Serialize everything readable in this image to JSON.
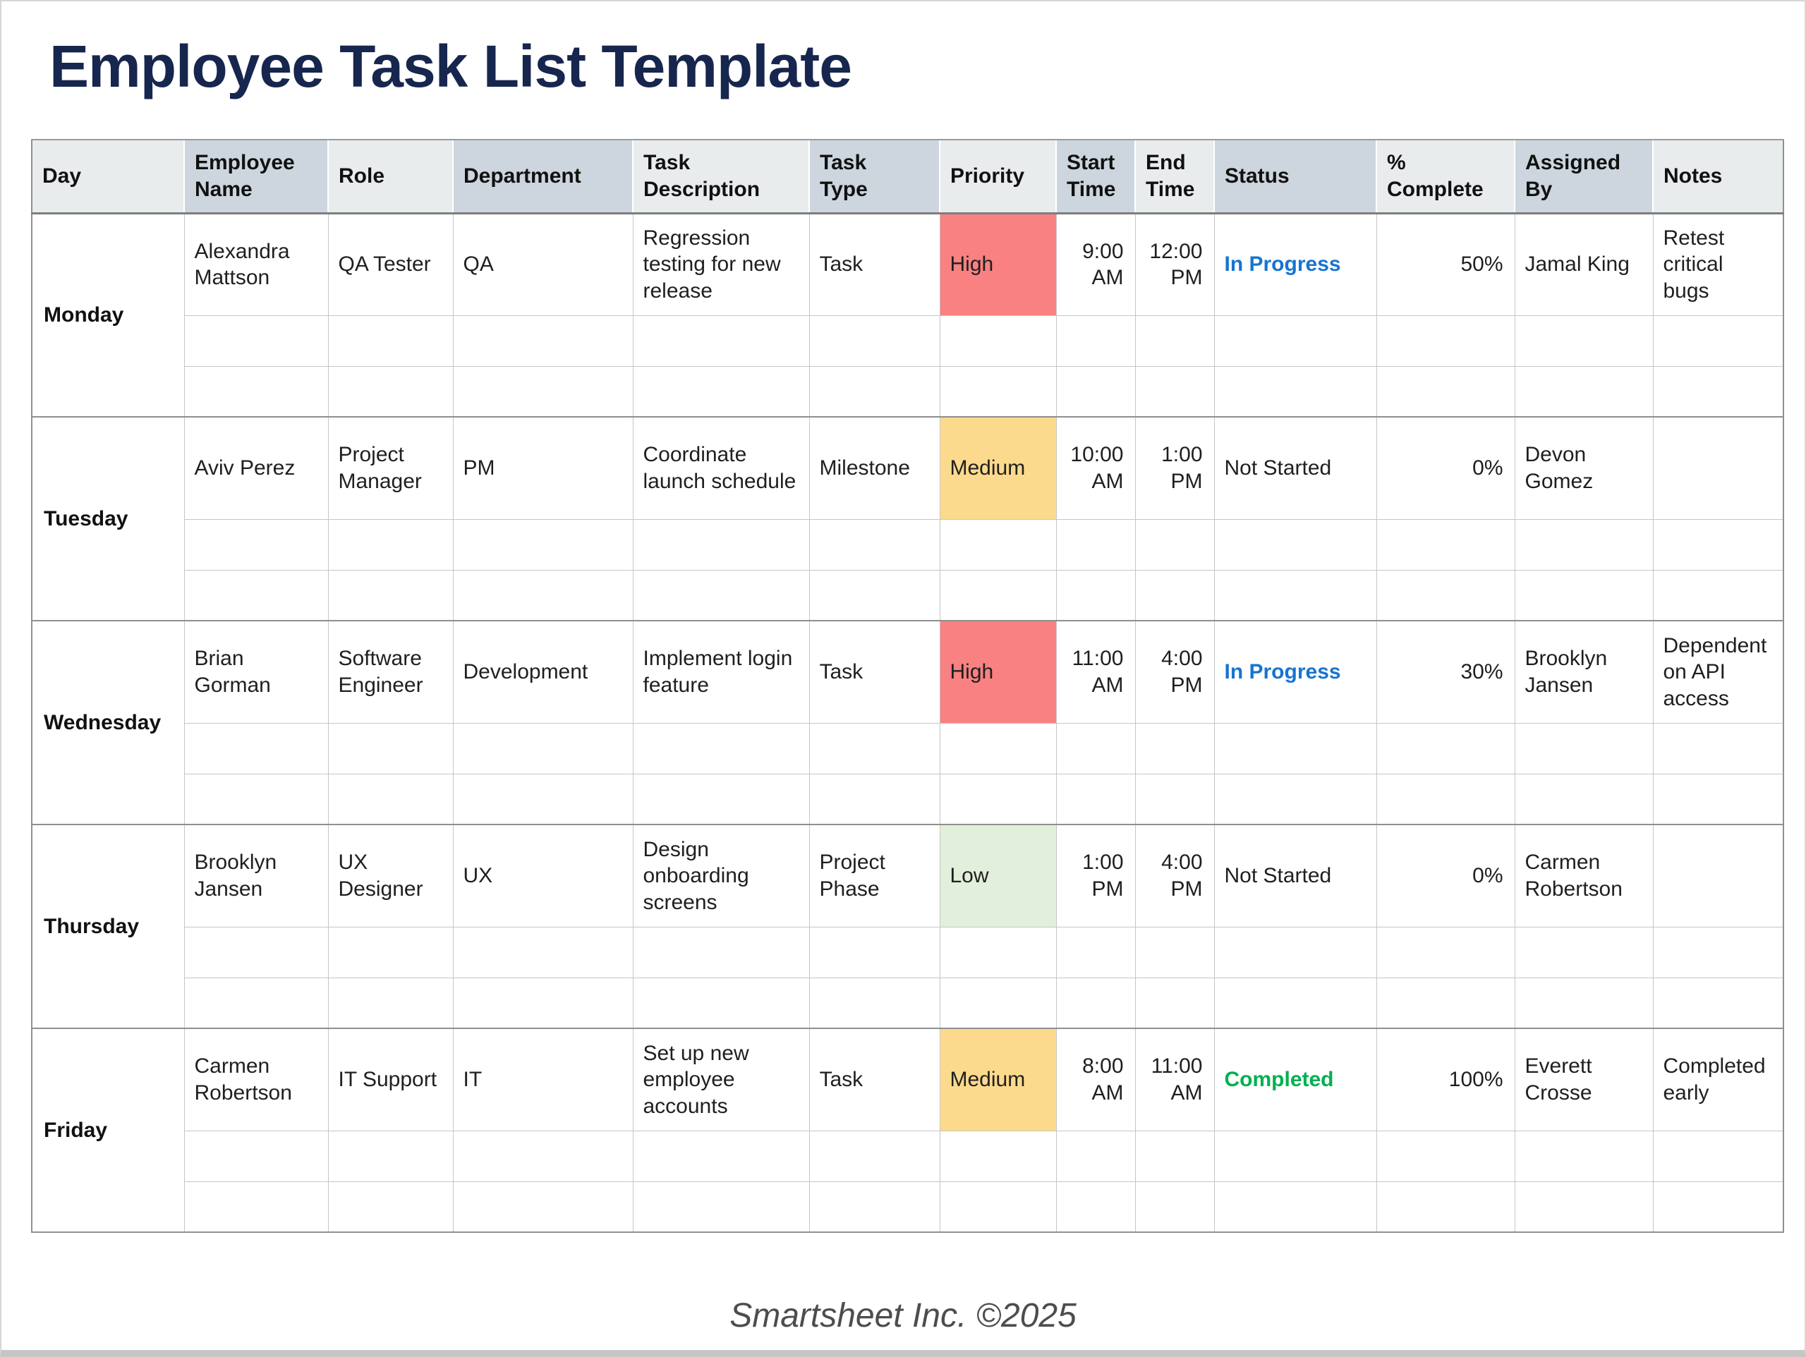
{
  "page": {
    "title": "Employee Task List Template",
    "footer": "Smartsheet Inc. ©2025"
  },
  "colors": {
    "title_navy": "#17264e",
    "header_light": "#e9eced",
    "header_dark": "#cdd6de",
    "grid_line": "#c6c6c6",
    "group_separator": "#8f8f8f"
  },
  "table": {
    "columns": [
      {
        "key": "day",
        "label": "Day"
      },
      {
        "key": "employee_name",
        "label": "Employee\nName"
      },
      {
        "key": "role",
        "label": "Role"
      },
      {
        "key": "department",
        "label": "Department"
      },
      {
        "key": "task_description",
        "label": "Task\nDescription"
      },
      {
        "key": "task_type",
        "label": "Task\nType"
      },
      {
        "key": "priority",
        "label": "Priority"
      },
      {
        "key": "start_time",
        "label": "Start\nTime"
      },
      {
        "key": "end_time",
        "label": "End\nTime"
      },
      {
        "key": "status",
        "label": "Status"
      },
      {
        "key": "pct_complete",
        "label": "%\nComplete"
      },
      {
        "key": "assigned_by",
        "label": "Assigned\nBy"
      },
      {
        "key": "notes",
        "label": "Notes"
      }
    ],
    "empty_rows_per_group": 2,
    "groups": [
      {
        "day": "Monday",
        "entry": {
          "employee_name": "Alexandra Mattson",
          "role": "QA Tester",
          "department": "QA",
          "task_description": "Regression testing for new release",
          "task_type": "Task",
          "priority": "High",
          "start_time": "9:00 AM",
          "end_time": "12:00 PM",
          "status": "In Progress",
          "pct_complete": "50%",
          "assigned_by": "Jamal King",
          "notes": "Retest critical bugs"
        }
      },
      {
        "day": "Tuesday",
        "entry": {
          "employee_name": "Aviv Perez",
          "role": "Project Manager",
          "department": "PM",
          "task_description": "Coordinate launch schedule",
          "task_type": "Milestone",
          "priority": "Medium",
          "start_time": "10:00 AM",
          "end_time": "1:00 PM",
          "status": "Not Started",
          "pct_complete": "0%",
          "assigned_by": "Devon Gomez",
          "notes": ""
        }
      },
      {
        "day": "Wednesday",
        "entry": {
          "employee_name": "Brian Gorman",
          "role": "Software Engineer",
          "department": "Development",
          "task_description": "Implement login feature",
          "task_type": "Task",
          "priority": "High",
          "start_time": "11:00 AM",
          "end_time": "4:00 PM",
          "status": "In Progress",
          "pct_complete": "30%",
          "assigned_by": "Brooklyn Jansen",
          "notes": "Dependent on API access"
        }
      },
      {
        "day": "Thursday",
        "entry": {
          "employee_name": "Brooklyn Jansen",
          "role": "UX Designer",
          "department": "UX",
          "task_description": "Design onboarding screens",
          "task_type": "Project Phase",
          "priority": "Low",
          "start_time": "1:00 PM",
          "end_time": "4:00 PM",
          "status": "Not Started",
          "pct_complete": "0%",
          "assigned_by": "Carmen Robertson",
          "notes": ""
        }
      },
      {
        "day": "Friday",
        "entry": {
          "employee_name": "Carmen Robertson",
          "role": "IT Support",
          "department": "IT",
          "task_description": "Set up new employee accounts",
          "task_type": "Task",
          "priority": "Medium",
          "start_time": "8:00 AM",
          "end_time": "11:00 AM",
          "status": "Completed",
          "pct_complete": "100%",
          "assigned_by": "Everett Crosse",
          "notes": "Completed early"
        }
      }
    ],
    "priority_colors": {
      "High": "#f98181",
      "Medium": "#fcda8d",
      "Low": "#e2efda"
    },
    "status_styles": {
      "In Progress": {
        "color": "#1774d1",
        "bold": true
      },
      "Not Started": {
        "color": "#1f1f1f",
        "bold": false
      },
      "Completed": {
        "color": "#00b050",
        "bold": true
      }
    }
  }
}
